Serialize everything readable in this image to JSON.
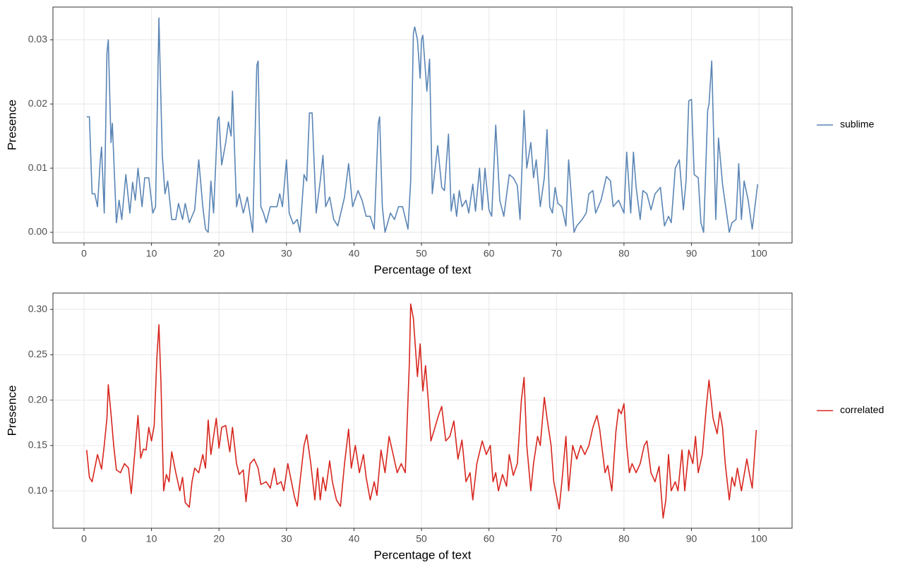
{
  "chart_data": [
    {
      "type": "line",
      "xlabel": "Percentage of text",
      "ylabel": "Presence",
      "grid": true,
      "legend": "right",
      "xlim": [
        -4.6,
        104.9
      ],
      "xticks": [
        0,
        10,
        20,
        30,
        40,
        50,
        60,
        70,
        80,
        90,
        100
      ],
      "ylim": [
        -0.00165,
        0.0351
      ],
      "yticks": [
        {
          "value": 0,
          "label": "0.00"
        },
        {
          "value": 0.01,
          "label": "0.01"
        },
        {
          "value": 0.02,
          "label": "0.02"
        },
        {
          "value": 0.03,
          "label": "0.03"
        }
      ],
      "x": [
        0.4,
        0.8,
        1.2,
        1.6,
        2,
        2.4,
        2.6,
        3,
        3.4,
        3.6,
        4,
        4.2,
        4.8,
        5.2,
        5.6,
        6.2,
        6.8,
        7.2,
        7.6,
        8,
        8.6,
        9,
        9.6,
        10.2,
        10.6,
        11.1,
        11.6,
        12,
        12.4,
        13,
        13.6,
        14,
        14.6,
        15,
        15.6,
        16.4,
        17,
        17.6,
        18,
        18.4,
        18.8,
        19.2,
        19.8,
        20,
        20.4,
        21,
        21.4,
        21.8,
        22,
        22.6,
        23,
        23.6,
        24.2,
        25,
        25.6,
        25.8,
        26.2,
        26.6,
        27,
        27.6,
        28.6,
        29,
        29.4,
        30,
        30.4,
        31,
        31.6,
        32,
        32.6,
        33,
        33.4,
        33.8,
        34.4,
        35,
        35.4,
        35.8,
        36.4,
        37,
        37.6,
        38.6,
        39.2,
        39.8,
        40.6,
        41.2,
        41.8,
        42.4,
        43,
        43.6,
        43.8,
        44.2,
        44.6,
        45.4,
        46,
        46.6,
        47.2,
        48,
        48.4,
        48.8,
        49,
        49.4,
        49.8,
        50,
        50.2,
        50.8,
        51.2,
        51.6,
        52.4,
        53,
        53.4,
        54,
        54.4,
        54.8,
        55.2,
        55.6,
        56,
        56.6,
        57,
        57.6,
        58,
        58.6,
        59,
        59.4,
        60,
        60.4,
        61,
        61.6,
        62.2,
        63,
        63.6,
        64.2,
        64.6,
        65.2,
        65.6,
        66.2,
        66.6,
        67,
        67.6,
        68.2,
        68.6,
        69,
        69.4,
        69.8,
        70.2,
        70.8,
        71.4,
        71.8,
        72.6,
        73,
        73.8,
        74.4,
        74.8,
        75.4,
        75.8,
        76.6,
        77.4,
        78,
        78.4,
        79.2,
        80,
        80.4,
        81,
        81.4,
        81.8,
        82.4,
        82.8,
        83.4,
        84,
        84.6,
        85.4,
        86,
        86.6,
        87,
        87.6,
        88.2,
        88.8,
        89.2,
        89.6,
        90,
        90.4,
        91,
        91.4,
        91.8,
        92.4,
        92.6,
        93,
        93.6,
        94,
        94.6,
        95,
        95.6,
        96,
        96.6,
        97,
        97.4,
        97.8,
        98.4,
        99,
        99.4,
        99.8
      ],
      "series": [
        {
          "name": "sublime",
          "color": "#5a85b5",
          "values": [
            0.018,
            0.018,
            0.006,
            0.006,
            0.004,
            0.011,
            0.0133,
            0.003,
            0.028,
            0.03,
            0.014,
            0.017,
            0.0015,
            0.005,
            0.002,
            0.009,
            0.003,
            0.0078,
            0.005,
            0.01,
            0.004,
            0.0085,
            0.0085,
            0.003,
            0.004,
            0.0334,
            0.012,
            0.006,
            0.008,
            0.002,
            0.002,
            0.0045,
            0.002,
            0.0045,
            0.0015,
            0.0035,
            0.0113,
            0.004,
            0.0005,
            0,
            0.008,
            0.003,
            0.0175,
            0.018,
            0.0105,
            0.014,
            0.0172,
            0.015,
            0.022,
            0.004,
            0.006,
            0.003,
            0.0055,
            0,
            0.026,
            0.0267,
            0.004,
            0.003,
            0.0015,
            0.004,
            0.004,
            0.006,
            0.004,
            0.0113,
            0.003,
            0.0013,
            0.002,
            0,
            0.009,
            0.008,
            0.0186,
            0.0186,
            0.003,
            0.008,
            0.012,
            0.004,
            0.0055,
            0.002,
            0.001,
            0.0055,
            0.0107,
            0.004,
            0.0065,
            0.005,
            0.0025,
            0.0025,
            0.0005,
            0.017,
            0.018,
            0.004,
            0,
            0.003,
            0.002,
            0.004,
            0.004,
            0.0005,
            0.008,
            0.031,
            0.032,
            0.03,
            0.024,
            0.03,
            0.0307,
            0.022,
            0.027,
            0.006,
            0.0135,
            0.007,
            0.0065,
            0.0153,
            0.0033,
            0.006,
            0.0025,
            0.0065,
            0.004,
            0.005,
            0.003,
            0.0075,
            0.0033,
            0.01,
            0.0035,
            0.01,
            0.0035,
            0.0025,
            0.0167,
            0.005,
            0.0025,
            0.009,
            0.0085,
            0.0073,
            0.002,
            0.019,
            0.01,
            0.014,
            0.0085,
            0.0113,
            0.004,
            0.0085,
            0.016,
            0.004,
            0.003,
            0.007,
            0.0045,
            0.004,
            0.001,
            0.0113,
            0,
            0.001,
            0.002,
            0.003,
            0.006,
            0.0065,
            0.003,
            0.005,
            0.0087,
            0.008,
            0.004,
            0.005,
            0.003,
            0.0125,
            0.003,
            0.0125,
            0.007,
            0.002,
            0.0065,
            0.006,
            0.0035,
            0.006,
            0.007,
            0.001,
            0.0025,
            0.0015,
            0.01,
            0.0113,
            0.0035,
            0.008,
            0.0205,
            0.0207,
            0.009,
            0.0085,
            0.0015,
            0,
            0.019,
            0.02,
            0.0267,
            0.002,
            0.0147,
            0.0075,
            0.0045,
            0,
            0.0015,
            0.002,
            0.0107,
            0.002,
            0.008,
            0.005,
            0.0005,
            0.004,
            0.0075
          ]
        }
      ]
    },
    {
      "type": "line",
      "xlabel": "Percentage of text",
      "ylabel": "Presence",
      "grid": true,
      "legend": "right",
      "xlim": [
        -4.6,
        104.9
      ],
      "xticks": [
        0,
        10,
        20,
        30,
        40,
        50,
        60,
        70,
        80,
        90,
        100
      ],
      "ylim": [
        0.0588,
        0.318
      ],
      "yticks": [
        {
          "value": 0.1,
          "label": "0.10"
        },
        0.15,
        {
          "value": 0.2,
          "label": "0.20"
        },
        0.25,
        {
          "value": 0.3,
          "label": "0.30"
        }
      ],
      "x": [
        0.4,
        0.8,
        1.2,
        1.6,
        2,
        2.6,
        3,
        3.4,
        3.6,
        4,
        4.4,
        4.8,
        5.4,
        6,
        6.6,
        7,
        7.6,
        8,
        8.4,
        8.8,
        9.2,
        9.6,
        10,
        10.4,
        10.8,
        11.1,
        11.4,
        11.8,
        12.2,
        12.6,
        13,
        13.6,
        14.2,
        14.6,
        15,
        15.6,
        16,
        16.4,
        17,
        17.6,
        18,
        18.4,
        18.8,
        19.2,
        19.6,
        20,
        20.4,
        21,
        21.6,
        22,
        22.6,
        23,
        23.6,
        24,
        24.6,
        25.2,
        25.8,
        26.2,
        27,
        27.6,
        28.2,
        28.6,
        29.2,
        29.6,
        30.2,
        30.6,
        31.2,
        31.6,
        32,
        32.6,
        33,
        33.6,
        34.2,
        34.6,
        35,
        35.4,
        35.8,
        36.4,
        36.8,
        37.4,
        38,
        38.6,
        39.2,
        39.6,
        40.2,
        40.8,
        41.4,
        41.8,
        42.4,
        43,
        43.4,
        44,
        44.6,
        45.2,
        45.8,
        46.4,
        47,
        47.6,
        48.2,
        48.4,
        48.8,
        49.4,
        49.8,
        50.2,
        50.6,
        51,
        51.4,
        52,
        52.6,
        53,
        53.6,
        54.2,
        54.8,
        55.4,
        56,
        56.6,
        57.2,
        57.6,
        58.2,
        59,
        59.6,
        60.2,
        60.6,
        61,
        61.4,
        62,
        62.6,
        63,
        63.6,
        64.2,
        64.8,
        65.2,
        65.6,
        66.2,
        66.6,
        67.2,
        67.6,
        68.2,
        68.6,
        69.2,
        69.6,
        70.4,
        70.8,
        71.4,
        71.8,
        72.4,
        73,
        73.6,
        74.2,
        74.8,
        75.4,
        76,
        76.4,
        77.2,
        77.6,
        78.2,
        78.8,
        79.2,
        79.6,
        80,
        80.4,
        80.8,
        81.2,
        81.8,
        82.4,
        83,
        83.4,
        84,
        84.6,
        85.2,
        85.8,
        86.2,
        86.6,
        87,
        87.6,
        88,
        88.6,
        89,
        89.6,
        90.2,
        90.6,
        91,
        91.6,
        92.2,
        92.6,
        93.2,
        93.8,
        94.2,
        94.6,
        95,
        95.6,
        96,
        96.4,
        96.8,
        97.4,
        98.2,
        98.6,
        99,
        99.6
      ],
      "series": [
        {
          "name": "correlated",
          "color": "#d7261e",
          "values": [
            0.145,
            0.115,
            0.11,
            0.125,
            0.14,
            0.124,
            0.15,
            0.18,
            0.217,
            0.185,
            0.15,
            0.123,
            0.12,
            0.13,
            0.125,
            0.097,
            0.148,
            0.183,
            0.136,
            0.146,
            0.145,
            0.17,
            0.155,
            0.172,
            0.247,
            0.283,
            0.22,
            0.1,
            0.118,
            0.11,
            0.143,
            0.12,
            0.1,
            0.115,
            0.087,
            0.082,
            0.11,
            0.125,
            0.12,
            0.14,
            0.125,
            0.178,
            0.14,
            0.16,
            0.18,
            0.147,
            0.17,
            0.172,
            0.143,
            0.17,
            0.13,
            0.118,
            0.123,
            0.088,
            0.13,
            0.135,
            0.125,
            0.107,
            0.11,
            0.103,
            0.125,
            0.107,
            0.11,
            0.1,
            0.13,
            0.115,
            0.093,
            0.083,
            0.11,
            0.15,
            0.162,
            0.13,
            0.09,
            0.125,
            0.09,
            0.115,
            0.1,
            0.133,
            0.11,
            0.09,
            0.083,
            0.13,
            0.168,
            0.125,
            0.15,
            0.12,
            0.14,
            0.115,
            0.09,
            0.11,
            0.095,
            0.145,
            0.12,
            0.16,
            0.14,
            0.12,
            0.13,
            0.12,
            0.24,
            0.306,
            0.29,
            0.226,
            0.262,
            0.21,
            0.238,
            0.2,
            0.155,
            0.17,
            0.185,
            0.193,
            0.155,
            0.16,
            0.177,
            0.135,
            0.156,
            0.11,
            0.12,
            0.09,
            0.13,
            0.155,
            0.14,
            0.15,
            0.11,
            0.12,
            0.1,
            0.118,
            0.105,
            0.14,
            0.117,
            0.13,
            0.2,
            0.225,
            0.15,
            0.1,
            0.13,
            0.16,
            0.15,
            0.203,
            0.18,
            0.15,
            0.11,
            0.08,
            0.11,
            0.16,
            0.1,
            0.15,
            0.135,
            0.15,
            0.14,
            0.15,
            0.17,
            0.183,
            0.168,
            0.12,
            0.128,
            0.1,
            0.165,
            0.19,
            0.185,
            0.196,
            0.15,
            0.12,
            0.13,
            0.12,
            0.13,
            0.15,
            0.155,
            0.12,
            0.11,
            0.127,
            0.07,
            0.09,
            0.14,
            0.1,
            0.11,
            0.1,
            0.145,
            0.1,
            0.145,
            0.13,
            0.16,
            0.12,
            0.14,
            0.193,
            0.222,
            0.18,
            0.163,
            0.187,
            0.17,
            0.13,
            0.09,
            0.115,
            0.105,
            0.125,
            0.1,
            0.135,
            0.118,
            0.103,
            0.167
          ]
        }
      ]
    }
  ]
}
